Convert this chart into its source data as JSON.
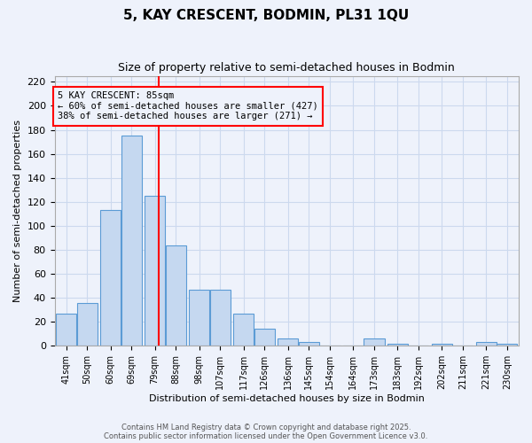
{
  "title": "5, KAY CRESCENT, BODMIN, PL31 1QU",
  "subtitle": "Size of property relative to semi-detached houses in Bodmin",
  "xlabel": "Distribution of semi-detached houses by size in Bodmin",
  "ylabel": "Number of semi-detached properties",
  "bar_labels": [
    "41sqm",
    "50sqm",
    "60sqm",
    "69sqm",
    "79sqm",
    "88sqm",
    "98sqm",
    "107sqm",
    "117sqm",
    "126sqm",
    "136sqm",
    "145sqm",
    "154sqm",
    "164sqm",
    "173sqm",
    "183sqm",
    "192sqm",
    "202sqm",
    "211sqm",
    "221sqm",
    "230sqm"
  ],
  "bar_values": [
    27,
    36,
    113,
    175,
    125,
    84,
    47,
    47,
    27,
    14,
    6,
    3,
    0,
    0,
    6,
    2,
    0,
    2,
    0,
    3,
    2
  ],
  "bar_color": "#c5d8f0",
  "bar_edge_color": "#5b9bd5",
  "grid_color": "#ccd9ee",
  "background_color": "#eef2fb",
  "vline_x": 85,
  "vline_label": "5 KAY CRESCENT: 85sqm",
  "annotation_line1": "← 60% of semi-detached houses are smaller (427)",
  "annotation_line2": "38% of semi-detached houses are larger (271) →",
  "box_edge_color": "red",
  "vline_color": "red",
  "ylim": [
    0,
    225
  ],
  "yticks": [
    0,
    20,
    40,
    60,
    80,
    100,
    120,
    140,
    160,
    180,
    200,
    220
  ],
  "footer1": "Contains HM Land Registry data © Crown copyright and database right 2025.",
  "footer2": "Contains public sector information licensed under the Open Government Licence v3.0.",
  "bin_edges": [
    41,
    50,
    60,
    69,
    79,
    88,
    98,
    107,
    117,
    126,
    136,
    145,
    154,
    164,
    173,
    183,
    192,
    202,
    211,
    221,
    230
  ]
}
